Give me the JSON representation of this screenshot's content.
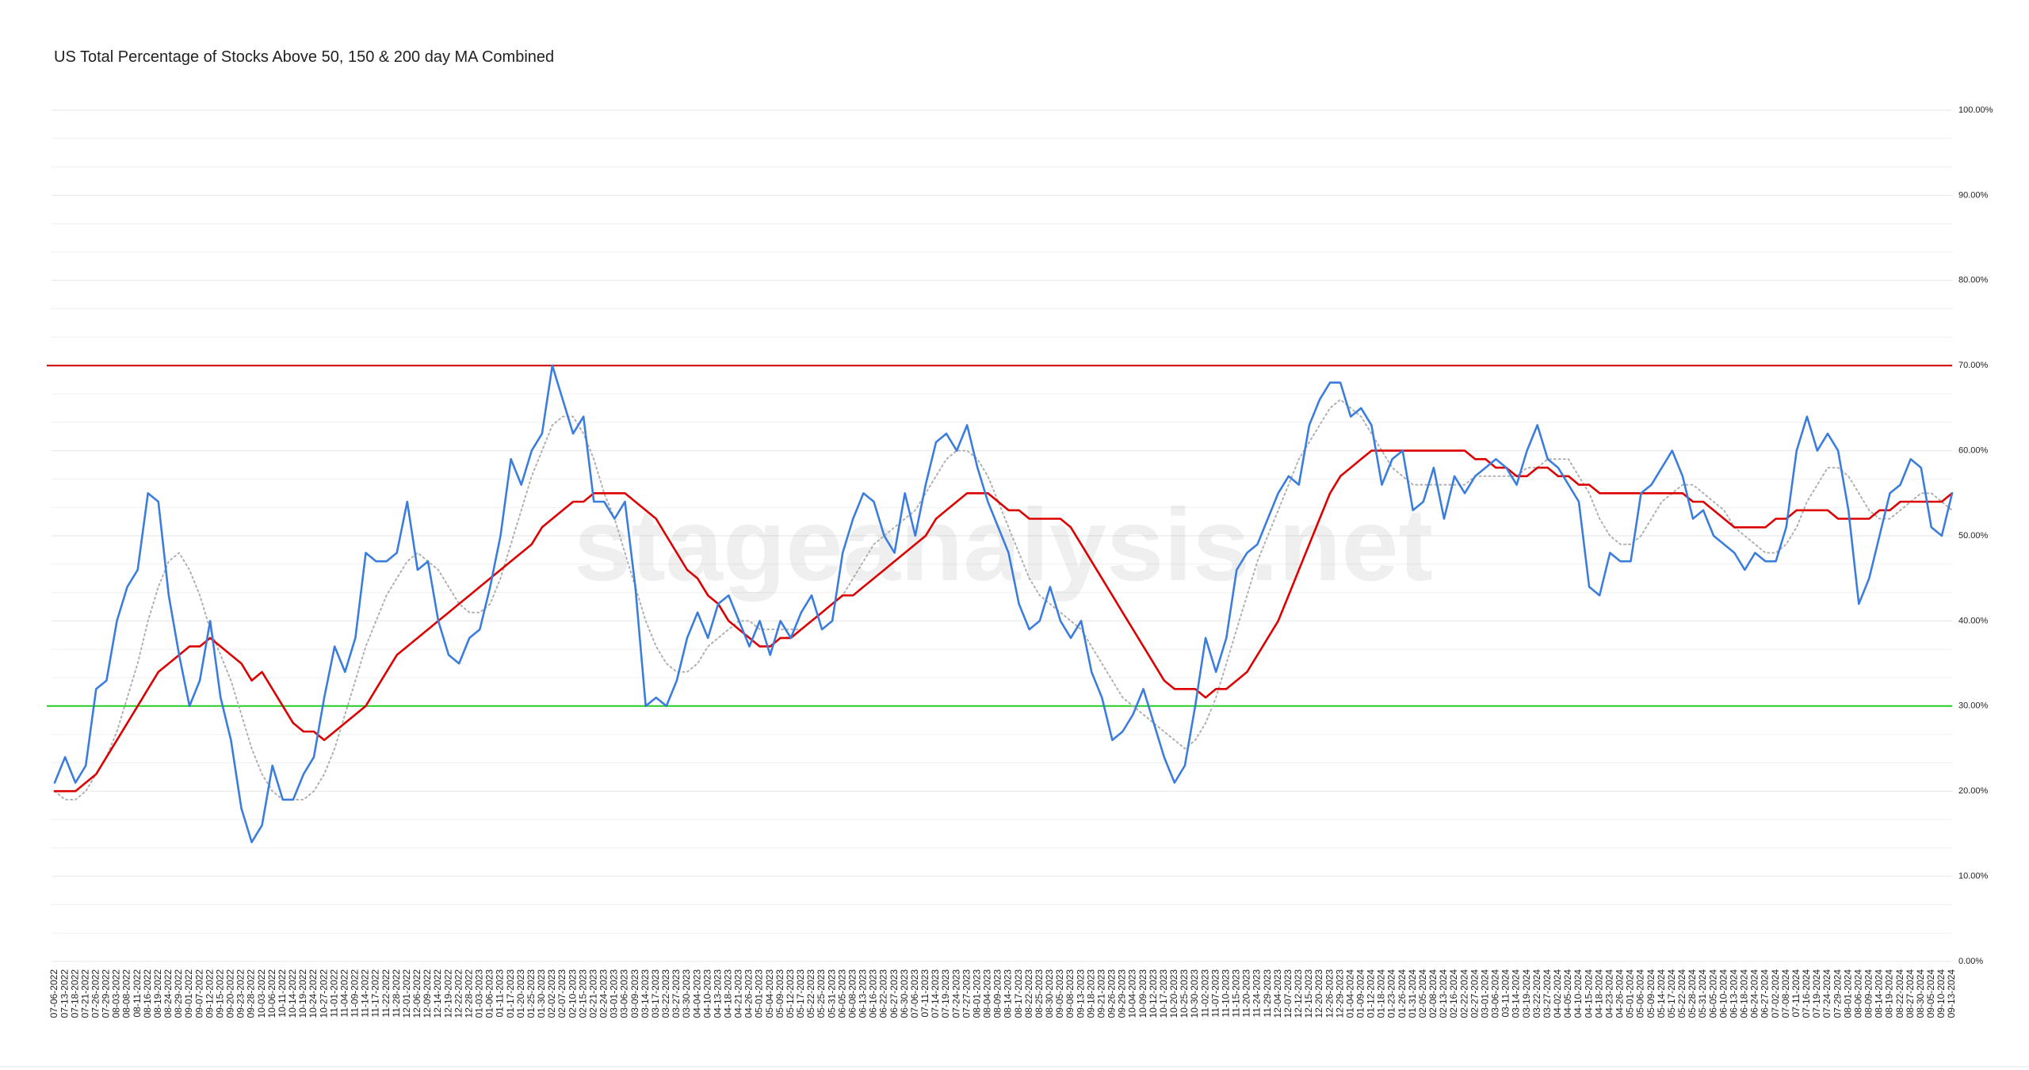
{
  "chart_data": {
    "type": "line",
    "title": "US Total Percentage of Stocks Above 50, 150 & 200 day MA Combined",
    "watermark": "stageanalysis.net",
    "categories": [
      "07-06-2022",
      "07-13-2022",
      "07-18-2022",
      "07-21-2022",
      "07-26-2022",
      "07-29-2022",
      "08-03-2022",
      "08-08-2022",
      "08-11-2022",
      "08-16-2022",
      "08-19-2022",
      "08-24-2022",
      "08-29-2022",
      "09-01-2022",
      "09-07-2022",
      "09-12-2022",
      "09-15-2022",
      "09-20-2022",
      "09-23-2022",
      "09-28-2022",
      "10-03-2022",
      "10-06-2022",
      "10-11-2022",
      "10-14-2022",
      "10-19-2022",
      "10-24-2022",
      "10-27-2022",
      "11-01-2022",
      "11-04-2022",
      "11-09-2022",
      "11-14-2022",
      "11-17-2022",
      "11-22-2022",
      "11-28-2022",
      "12-01-2022",
      "12-06-2022",
      "12-09-2022",
      "12-14-2022",
      "12-19-2022",
      "12-22-2022",
      "12-28-2022",
      "01-03-2023",
      "01-06-2023",
      "01-11-2023",
      "01-17-2023",
      "01-20-2023",
      "01-25-2023",
      "01-30-2023",
      "02-02-2023",
      "02-07-2023",
      "02-10-2023",
      "02-15-2023",
      "02-21-2023",
      "02-24-2023",
      "03-01-2023",
      "03-06-2023",
      "03-09-2023",
      "03-14-2023",
      "03-17-2023",
      "03-22-2023",
      "03-27-2023",
      "03-30-2023",
      "04-04-2023",
      "04-10-2023",
      "04-13-2023",
      "04-18-2023",
      "04-21-2023",
      "04-26-2023",
      "05-01-2023",
      "05-04-2023",
      "05-09-2023",
      "05-12-2023",
      "05-17-2023",
      "05-22-2023",
      "05-25-2023",
      "05-31-2023",
      "06-05-2023",
      "06-08-2023",
      "06-13-2023",
      "06-16-2023",
      "06-22-2023",
      "06-27-2023",
      "06-30-2023",
      "07-06-2023",
      "07-11-2023",
      "07-14-2023",
      "07-19-2023",
      "07-24-2023",
      "07-27-2023",
      "08-01-2023",
      "08-04-2023",
      "08-09-2023",
      "08-14-2023",
      "08-17-2023",
      "08-22-2023",
      "08-25-2023",
      "08-30-2023",
      "09-05-2023",
      "09-08-2023",
      "09-13-2023",
      "09-18-2023",
      "09-21-2023",
      "09-26-2023",
      "09-29-2023",
      "10-04-2023",
      "10-09-2023",
      "10-12-2023",
      "10-17-2023",
      "10-20-2023",
      "10-25-2023",
      "10-30-2023",
      "11-02-2023",
      "11-07-2023",
      "11-10-2023",
      "11-15-2023",
      "11-20-2023",
      "11-24-2023",
      "11-29-2023",
      "12-04-2023",
      "12-07-2023",
      "12-12-2023",
      "12-15-2023",
      "12-20-2023",
      "12-26-2023",
      "12-29-2023",
      "01-04-2024",
      "01-09-2024",
      "01-12-2024",
      "01-18-2024",
      "01-23-2024",
      "01-26-2024",
      "01-31-2024",
      "02-05-2024",
      "02-08-2024",
      "02-13-2024",
      "02-16-2024",
      "02-22-2024",
      "02-27-2024",
      "03-01-2024",
      "03-06-2024",
      "03-11-2024",
      "03-14-2024",
      "03-19-2024",
      "03-22-2024",
      "03-27-2024",
      "04-02-2024",
      "04-05-2024",
      "04-10-2024",
      "04-15-2024",
      "04-18-2024",
      "04-23-2024",
      "04-26-2024",
      "05-01-2024",
      "05-06-2024",
      "05-09-2024",
      "05-14-2024",
      "05-17-2024",
      "05-22-2024",
      "05-28-2024",
      "05-31-2024",
      "06-05-2024",
      "06-10-2024",
      "06-13-2024",
      "06-18-2024",
      "06-24-2024",
      "06-27-2024",
      "07-02-2024",
      "07-08-2024",
      "07-11-2024",
      "07-16-2024",
      "07-19-2024",
      "07-24-2024",
      "07-29-2024",
      "08-01-2024",
      "08-06-2024",
      "08-09-2024",
      "08-14-2024",
      "08-19-2024",
      "08-22-2024",
      "08-27-2024",
      "08-30-2024",
      "09-05-2024",
      "09-10-2024",
      "09-13-2024"
    ],
    "series": [
      {
        "color": "#b0b0b0",
        "style": "dotted",
        "values": [
          20,
          19,
          19,
          20,
          22,
          24,
          27,
          31,
          35,
          40,
          44,
          47,
          48,
          46,
          43,
          39,
          36,
          33,
          29,
          25,
          22,
          20,
          19,
          19,
          19,
          20,
          22,
          25,
          29,
          33,
          37,
          40,
          43,
          45,
          47,
          48,
          47,
          46,
          44,
          42,
          41,
          41,
          42,
          45,
          49,
          53,
          57,
          60,
          63,
          64,
          64,
          62,
          59,
          55,
          52,
          48,
          44,
          40,
          37,
          35,
          34,
          34,
          35,
          37,
          38,
          39,
          40,
          40,
          39,
          39,
          39,
          39,
          39,
          40,
          41,
          42,
          43,
          45,
          47,
          49,
          50,
          51,
          52,
          53,
          55,
          57,
          59,
          60,
          60,
          59,
          57,
          54,
          51,
          48,
          45,
          43,
          42,
          41,
          40,
          39,
          37,
          35,
          33,
          31,
          30,
          29,
          28,
          27,
          26,
          25,
          26,
          28,
          31,
          35,
          39,
          43,
          47,
          50,
          53,
          56,
          59,
          61,
          63,
          65,
          66,
          65,
          64,
          62,
          60,
          58,
          57,
          56,
          56,
          56,
          56,
          56,
          56,
          57,
          57,
          57,
          57,
          57,
          58,
          58,
          59,
          59,
          59,
          57,
          55,
          52,
          50,
          49,
          49,
          50,
          52,
          54,
          55,
          56,
          56,
          55,
          54,
          53,
          51,
          50,
          49,
          48,
          48,
          49,
          51,
          54,
          56,
          58,
          58,
          57,
          55,
          53,
          52,
          52,
          53,
          54,
          55,
          55,
          54,
          53
        ]
      },
      {
        "color": "#dd0000",
        "style": "solid",
        "values": [
          20,
          20,
          20,
          21,
          22,
          24,
          26,
          28,
          30,
          32,
          34,
          35,
          36,
          37,
          37,
          38,
          37,
          36,
          35,
          33,
          34,
          32,
          30,
          28,
          27,
          27,
          26,
          27,
          28,
          29,
          30,
          32,
          34,
          36,
          37,
          38,
          39,
          40,
          41,
          42,
          43,
          44,
          45,
          46,
          47,
          48,
          49,
          51,
          52,
          53,
          54,
          54,
          55,
          55,
          55,
          55,
          54,
          53,
          52,
          50,
          48,
          46,
          45,
          43,
          42,
          40,
          39,
          38,
          37,
          37,
          38,
          38,
          39,
          40,
          41,
          42,
          43,
          43,
          44,
          45,
          46,
          47,
          48,
          49,
          50,
          52,
          53,
          54,
          55,
          55,
          55,
          54,
          53,
          53,
          52,
          52,
          52,
          52,
          51,
          49,
          47,
          45,
          43,
          41,
          39,
          37,
          35,
          33,
          32,
          32,
          32,
          31,
          32,
          32,
          33,
          34,
          36,
          38,
          40,
          43,
          46,
          49,
          52,
          55,
          57,
          58,
          59,
          60,
          60,
          60,
          60,
          60,
          60,
          60,
          60,
          60,
          60,
          59,
          59,
          58,
          58,
          57,
          57,
          58,
          58,
          57,
          57,
          56,
          56,
          55,
          55,
          55,
          55,
          55,
          55,
          55,
          55,
          55,
          54,
          54,
          53,
          52,
          51,
          51,
          51,
          51,
          52,
          52,
          53,
          53,
          53,
          53,
          52,
          52,
          52,
          52,
          53,
          53,
          54,
          54,
          54,
          54,
          54,
          55
        ]
      },
      {
        "color": "#3b7ddd",
        "style": "solid",
        "values": [
          21,
          24,
          21,
          23,
          32,
          33,
          40,
          44,
          46,
          55,
          54,
          43,
          36,
          30,
          33,
          40,
          31,
          26,
          18,
          14,
          16,
          23,
          19,
          19,
          22,
          24,
          31,
          37,
          34,
          38,
          48,
          47,
          47,
          48,
          54,
          46,
          47,
          40,
          36,
          35,
          38,
          39,
          44,
          50,
          59,
          56,
          60,
          62,
          70,
          66,
          62,
          64,
          54,
          54,
          52,
          54,
          44,
          30,
          31,
          30,
          33,
          38,
          41,
          38,
          42,
          43,
          40,
          37,
          40,
          36,
          40,
          38,
          41,
          43,
          39,
          40,
          48,
          52,
          55,
          54,
          50,
          48,
          55,
          50,
          56,
          61,
          62,
          60,
          63,
          58,
          54,
          51,
          48,
          42,
          39,
          40,
          44,
          40,
          38,
          40,
          34,
          31,
          26,
          27,
          29,
          32,
          28,
          24,
          21,
          23,
          30,
          38,
          34,
          38,
          46,
          48,
          49,
          52,
          55,
          57,
          56,
          63,
          66,
          68,
          68,
          64,
          65,
          63,
          56,
          59,
          60,
          53,
          54,
          58,
          52,
          57,
          55,
          57,
          58,
          59,
          58,
          56,
          60,
          63,
          59,
          58,
          56,
          54,
          44,
          43,
          48,
          47,
          47,
          55,
          56,
          58,
          60,
          57,
          52,
          53,
          50,
          49,
          48,
          46,
          48,
          47,
          47,
          51,
          60,
          64,
          60,
          62,
          60,
          53,
          42,
          45,
          50,
          55,
          56,
          59,
          58,
          51,
          50,
          55
        ]
      }
    ],
    "reference_lines": [
      {
        "value": 70,
        "color": "#cc0000"
      },
      {
        "value": 30,
        "color": "#22cc22"
      }
    ],
    "ylim": [
      0,
      100
    ],
    "yticks": [
      {
        "value": 0,
        "label": "0.00%"
      },
      {
        "value": 10,
        "label": "10.00%"
      },
      {
        "value": 20,
        "label": "20.00%"
      },
      {
        "value": 30,
        "label": "30.00%"
      },
      {
        "value": 40,
        "label": "40.00%"
      },
      {
        "value": 50,
        "label": "50.00%"
      },
      {
        "value": 60,
        "label": "60.00%"
      },
      {
        "value": 70,
        "label": "70.00%"
      },
      {
        "value": 80,
        "label": "80.00%"
      },
      {
        "value": 90,
        "label": "90.00%"
      },
      {
        "value": 100,
        "label": "100.00%"
      }
    ],
    "grid": true,
    "minor_grid_divisions": 3
  }
}
